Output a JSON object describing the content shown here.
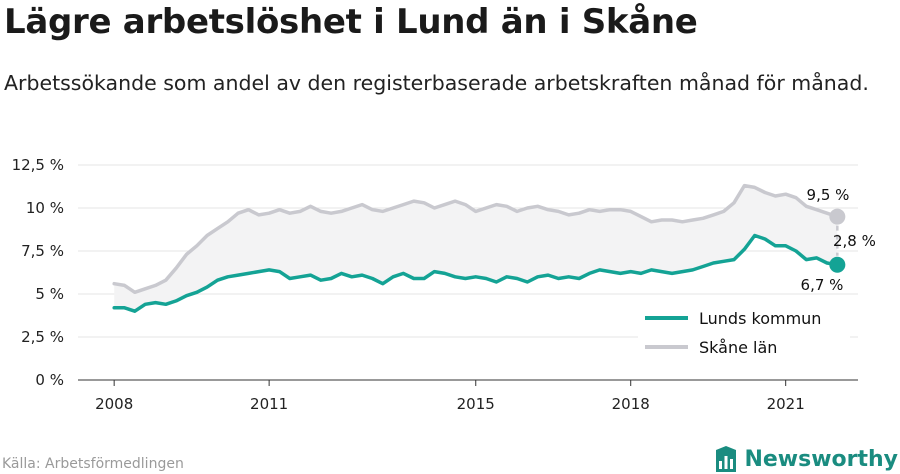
{
  "title": "Lägre arbetslöshet i Lund än i Skåne",
  "subtitle": "Arbetssökande som andel av den registerbaserade arbetskraften månad för månad.",
  "source": "Källa: Arbetsförmedlingen",
  "brand": "Newsworthy",
  "colors": {
    "lund": "#14a395",
    "skane": "#c9c9cf",
    "gap_fill": "#f3f3f4",
    "grid": "#e6e6e6"
  },
  "chart_data": {
    "type": "line",
    "x_ticks": [
      "2008",
      "2011",
      "2015",
      "2018",
      "2021"
    ],
    "x_tick_values": [
      2008,
      2011,
      2015,
      2018,
      2021
    ],
    "y_ticks": [
      "0 %",
      "2,5 %",
      "5 %",
      "7,5 %",
      "10 %",
      "12,5 %"
    ],
    "y_tick_values": [
      0,
      2.5,
      5,
      7.5,
      10,
      12.5
    ],
    "xlim": [
      2007.3,
      2022.4
    ],
    "ylim": [
      0,
      12.5
    ],
    "grid": true,
    "legend_position": "bottom-right",
    "series": [
      {
        "name": "Lunds kommun",
        "color": "#14a395",
        "points": [
          [
            2008.0,
            4.2
          ],
          [
            2008.2,
            4.2
          ],
          [
            2008.4,
            4.0
          ],
          [
            2008.6,
            4.4
          ],
          [
            2008.8,
            4.5
          ],
          [
            2009.0,
            4.4
          ],
          [
            2009.2,
            4.6
          ],
          [
            2009.4,
            4.9
          ],
          [
            2009.6,
            5.1
          ],
          [
            2009.8,
            5.4
          ],
          [
            2010.0,
            5.8
          ],
          [
            2010.2,
            6.0
          ],
          [
            2010.4,
            6.1
          ],
          [
            2010.6,
            6.2
          ],
          [
            2010.8,
            6.3
          ],
          [
            2011.0,
            6.4
          ],
          [
            2011.2,
            6.3
          ],
          [
            2011.4,
            5.9
          ],
          [
            2011.6,
            6.0
          ],
          [
            2011.8,
            6.1
          ],
          [
            2012.0,
            5.8
          ],
          [
            2012.2,
            5.9
          ],
          [
            2012.4,
            6.2
          ],
          [
            2012.6,
            6.0
          ],
          [
            2012.8,
            6.1
          ],
          [
            2013.0,
            5.9
          ],
          [
            2013.2,
            5.6
          ],
          [
            2013.4,
            6.0
          ],
          [
            2013.6,
            6.2
          ],
          [
            2013.8,
            5.9
          ],
          [
            2014.0,
            5.9
          ],
          [
            2014.2,
            6.3
          ],
          [
            2014.4,
            6.2
          ],
          [
            2014.6,
            6.0
          ],
          [
            2014.8,
            5.9
          ],
          [
            2015.0,
            6.0
          ],
          [
            2015.2,
            5.9
          ],
          [
            2015.4,
            5.7
          ],
          [
            2015.6,
            6.0
          ],
          [
            2015.8,
            5.9
          ],
          [
            2016.0,
            5.7
          ],
          [
            2016.2,
            6.0
          ],
          [
            2016.4,
            6.1
          ],
          [
            2016.6,
            5.9
          ],
          [
            2016.8,
            6.0
          ],
          [
            2017.0,
            5.9
          ],
          [
            2017.2,
            6.2
          ],
          [
            2017.4,
            6.4
          ],
          [
            2017.6,
            6.3
          ],
          [
            2017.8,
            6.2
          ],
          [
            2018.0,
            6.3
          ],
          [
            2018.2,
            6.2
          ],
          [
            2018.4,
            6.4
          ],
          [
            2018.6,
            6.3
          ],
          [
            2018.8,
            6.2
          ],
          [
            2019.0,
            6.3
          ],
          [
            2019.2,
            6.4
          ],
          [
            2019.4,
            6.6
          ],
          [
            2019.6,
            6.8
          ],
          [
            2019.8,
            6.9
          ],
          [
            2020.0,
            7.0
          ],
          [
            2020.2,
            7.6
          ],
          [
            2020.4,
            8.4
          ],
          [
            2020.6,
            8.2
          ],
          [
            2020.8,
            7.8
          ],
          [
            2021.0,
            7.8
          ],
          [
            2021.2,
            7.5
          ],
          [
            2021.4,
            7.0
          ],
          [
            2021.6,
            7.1
          ],
          [
            2021.8,
            6.8
          ],
          [
            2022.0,
            6.7
          ]
        ]
      },
      {
        "name": "Skåne län",
        "color": "#c9c9cf",
        "points": [
          [
            2008.0,
            5.6
          ],
          [
            2008.2,
            5.5
          ],
          [
            2008.4,
            5.1
          ],
          [
            2008.6,
            5.3
          ],
          [
            2008.8,
            5.5
          ],
          [
            2009.0,
            5.8
          ],
          [
            2009.2,
            6.5
          ],
          [
            2009.4,
            7.3
          ],
          [
            2009.6,
            7.8
          ],
          [
            2009.8,
            8.4
          ],
          [
            2010.0,
            8.8
          ],
          [
            2010.2,
            9.2
          ],
          [
            2010.4,
            9.7
          ],
          [
            2010.6,
            9.9
          ],
          [
            2010.8,
            9.6
          ],
          [
            2011.0,
            9.7
          ],
          [
            2011.2,
            9.9
          ],
          [
            2011.4,
            9.7
          ],
          [
            2011.6,
            9.8
          ],
          [
            2011.8,
            10.1
          ],
          [
            2012.0,
            9.8
          ],
          [
            2012.2,
            9.7
          ],
          [
            2012.4,
            9.8
          ],
          [
            2012.6,
            10.0
          ],
          [
            2012.8,
            10.2
          ],
          [
            2013.0,
            9.9
          ],
          [
            2013.2,
            9.8
          ],
          [
            2013.4,
            10.0
          ],
          [
            2013.6,
            10.2
          ],
          [
            2013.8,
            10.4
          ],
          [
            2014.0,
            10.3
          ],
          [
            2014.2,
            10.0
          ],
          [
            2014.4,
            10.2
          ],
          [
            2014.6,
            10.4
          ],
          [
            2014.8,
            10.2
          ],
          [
            2015.0,
            9.8
          ],
          [
            2015.2,
            10.0
          ],
          [
            2015.4,
            10.2
          ],
          [
            2015.6,
            10.1
          ],
          [
            2015.8,
            9.8
          ],
          [
            2016.0,
            10.0
          ],
          [
            2016.2,
            10.1
          ],
          [
            2016.4,
            9.9
          ],
          [
            2016.6,
            9.8
          ],
          [
            2016.8,
            9.6
          ],
          [
            2017.0,
            9.7
          ],
          [
            2017.2,
            9.9
          ],
          [
            2017.4,
            9.8
          ],
          [
            2017.6,
            9.9
          ],
          [
            2017.8,
            9.9
          ],
          [
            2018.0,
            9.8
          ],
          [
            2018.2,
            9.5
          ],
          [
            2018.4,
            9.2
          ],
          [
            2018.6,
            9.3
          ],
          [
            2018.8,
            9.3
          ],
          [
            2019.0,
            9.2
          ],
          [
            2019.2,
            9.3
          ],
          [
            2019.4,
            9.4
          ],
          [
            2019.6,
            9.6
          ],
          [
            2019.8,
            9.8
          ],
          [
            2020.0,
            10.3
          ],
          [
            2020.2,
            11.3
          ],
          [
            2020.4,
            11.2
          ],
          [
            2020.6,
            10.9
          ],
          [
            2020.8,
            10.7
          ],
          [
            2021.0,
            10.8
          ],
          [
            2021.2,
            10.6
          ],
          [
            2021.4,
            10.1
          ],
          [
            2021.6,
            9.9
          ],
          [
            2021.8,
            9.7
          ],
          [
            2022.0,
            9.5
          ]
        ]
      }
    ],
    "annotations": {
      "skane_last": "9,5 %",
      "lund_last": "6,7 %",
      "difference": "2,8 %"
    }
  }
}
